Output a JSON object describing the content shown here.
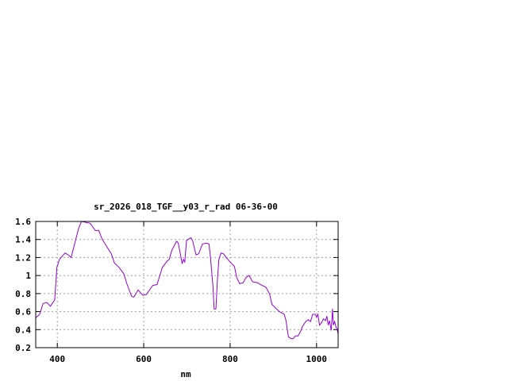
{
  "chart_data": {
    "type": "line",
    "title": "sr_2026_018_TGF__y03_r_rad 06-36-00",
    "xlabel": "nm",
    "ylabel": "",
    "xlim": [
      350,
      1050
    ],
    "ylim": [
      0.2,
      1.6
    ],
    "grid": true,
    "legend": "none",
    "line_color": "#9400D3",
    "xticks": [
      {
        "v": 400,
        "label": "400"
      },
      {
        "v": 600,
        "label": "600"
      },
      {
        "v": 800,
        "label": "800"
      },
      {
        "v": 1000,
        "label": "1000"
      }
    ],
    "yticks": [
      {
        "v": 0.2,
        "label": "0.2"
      },
      {
        "v": 0.4,
        "label": "0.4"
      },
      {
        "v": 0.6,
        "label": "0.6"
      },
      {
        "v": 0.8,
        "label": "0.8"
      },
      {
        "v": 1.0,
        "label": "1"
      },
      {
        "v": 1.2,
        "label": "1.2"
      },
      {
        "v": 1.4,
        "label": "1.4"
      },
      {
        "v": 1.6,
        "label": "1.6"
      }
    ],
    "series": [
      {
        "x": [
          350,
          359,
          367,
          376,
          384,
          394,
          399,
          405,
          418,
          425,
          432,
          439,
          449,
          456,
          476,
          488,
          496,
          504,
          512,
          525,
          532,
          543,
          554,
          561,
          572,
          577,
          587,
          598,
          606,
          621,
          631,
          643,
          654,
          659,
          665,
          676,
          680,
          689,
          692,
          695,
          699,
          709,
          713,
          721,
          727,
          736,
          745,
          751,
          755,
          760,
          763,
          767,
          771,
          774,
          779,
          785,
          791,
          800,
          810,
          815,
          822,
          830,
          837,
          844,
          852,
          864,
          870,
          883,
          891,
          897,
          905,
          914,
          925,
          929,
          935,
          941,
          946,
          951,
          957,
          963,
          967,
          975,
          981,
          986,
          991,
          997,
          1000,
          1003,
          1007,
          1012,
          1016,
          1021,
          1024,
          1027,
          1030,
          1034,
          1037,
          1039,
          1042,
          1045,
          1048,
          1050
        ],
        "y": [
          0.53,
          0.57,
          0.69,
          0.7,
          0.66,
          0.73,
          1.09,
          1.18,
          1.25,
          1.23,
          1.2,
          1.33,
          1.52,
          1.6,
          1.58,
          1.5,
          1.5,
          1.4,
          1.34,
          1.24,
          1.14,
          1.09,
          1.02,
          0.91,
          0.77,
          0.76,
          0.84,
          0.78,
          0.79,
          0.89,
          0.9,
          1.09,
          1.16,
          1.18,
          1.28,
          1.38,
          1.36,
          1.13,
          1.18,
          1.15,
          1.39,
          1.42,
          1.39,
          1.23,
          1.24,
          1.35,
          1.36,
          1.35,
          1.18,
          0.89,
          0.63,
          0.63,
          0.98,
          1.18,
          1.25,
          1.24,
          1.2,
          1.15,
          1.1,
          0.98,
          0.91,
          0.92,
          0.98,
          1.0,
          0.93,
          0.92,
          0.9,
          0.87,
          0.8,
          0.68,
          0.64,
          0.6,
          0.57,
          0.51,
          0.32,
          0.3,
          0.3,
          0.33,
          0.33,
          0.38,
          0.43,
          0.49,
          0.51,
          0.49,
          0.57,
          0.57,
          0.54,
          0.57,
          0.45,
          0.48,
          0.52,
          0.5,
          0.55,
          0.45,
          0.5,
          0.39,
          0.63,
          0.45,
          0.49,
          0.43,
          0.4,
          0.35
        ]
      }
    ]
  }
}
